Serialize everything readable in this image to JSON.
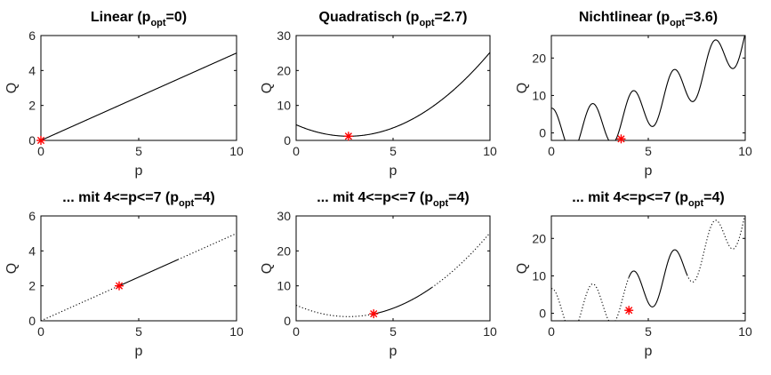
{
  "chart_data": [
    {
      "type": "line",
      "title_main": "Linear (p",
      "title_sub": "opt",
      "title_tail": "=0)",
      "xlabel": "p",
      "ylabel": "Q",
      "xlim": [
        0,
        10
      ],
      "ylim": [
        0,
        6
      ],
      "xticks": [
        "0",
        "5",
        "10"
      ],
      "yticks": [
        "0",
        "2",
        "4",
        "6"
      ],
      "func": "linear",
      "range": null,
      "optimum": {
        "x": 0,
        "y": 0
      }
    },
    {
      "type": "line",
      "title_main": "Quadratisch (p",
      "title_sub": "opt",
      "title_tail": "=2.7)",
      "xlabel": "p",
      "ylabel": "Q",
      "xlim": [
        0,
        10
      ],
      "ylim": [
        0,
        30
      ],
      "xticks": [
        "0",
        "5",
        "10"
      ],
      "yticks": [
        "0",
        "10",
        "20",
        "30"
      ],
      "func": "quadratic",
      "range": null,
      "optimum": {
        "x": 2.7,
        "y": 1.2
      }
    },
    {
      "type": "line",
      "title_main": "Nichtlinear (p",
      "title_sub": "opt",
      "title_tail": "=3.6)",
      "xlabel": "p",
      "ylabel": "Q",
      "xlim": [
        0,
        10
      ],
      "ylim": [
        -2,
        26
      ],
      "xticks": [
        "0",
        "5",
        "10"
      ],
      "yticks": [
        "0",
        "10",
        "20"
      ],
      "func": "nonlinear",
      "range": null,
      "optimum": {
        "x": 3.6,
        "y": -1.6
      }
    },
    {
      "type": "line",
      "title_main": "... mit 4<=p<=7 (p",
      "title_sub": "opt",
      "title_tail": "=4)",
      "xlabel": "p",
      "ylabel": "Q",
      "xlim": [
        0,
        10
      ],
      "ylim": [
        0,
        6
      ],
      "xticks": [
        "0",
        "5",
        "10"
      ],
      "yticks": [
        "0",
        "2",
        "4",
        "6"
      ],
      "func": "linear",
      "range": [
        4,
        7
      ],
      "optimum": {
        "x": 4,
        "y": 2
      }
    },
    {
      "type": "line",
      "title_main": "... mit  4<=p<=7 (p",
      "title_sub": "opt",
      "title_tail": "=4)",
      "xlabel": "p",
      "ylabel": "Q",
      "xlim": [
        0,
        10
      ],
      "ylim": [
        0,
        30
      ],
      "xticks": [
        "0",
        "5",
        "10"
      ],
      "yticks": [
        "0",
        "10",
        "20",
        "30"
      ],
      "func": "quadratic",
      "range": [
        4,
        7
      ],
      "optimum": {
        "x": 4,
        "y": 2
      }
    },
    {
      "type": "line",
      "title_main": "... mit  4<=p<=7 (p",
      "title_sub": "opt",
      "title_tail": "=4)",
      "xlabel": "p",
      "ylabel": "Q",
      "xlim": [
        0,
        10
      ],
      "ylim": [
        -2,
        26
      ],
      "xticks": [
        "0",
        "5",
        "10"
      ],
      "yticks": [
        "0",
        "10",
        "20"
      ],
      "func": "nonlinear",
      "range": [
        4,
        7
      ],
      "optimum": {
        "x": 4,
        "y": 0.8
      }
    }
  ],
  "colors": {
    "curve": "#000000",
    "optimum_marker": "#ff0000",
    "text": "#262626"
  }
}
